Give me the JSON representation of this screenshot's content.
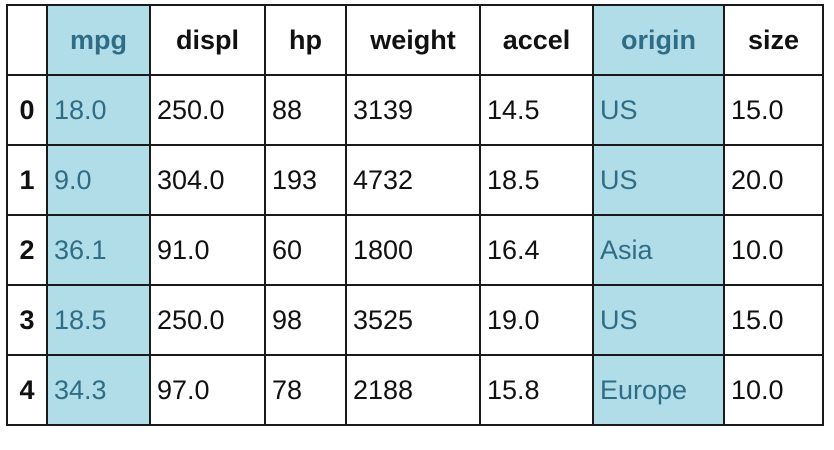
{
  "table": {
    "highlight_color": "#b1dde9",
    "highlight_text_color": "#2f6d86",
    "highlighted_columns": [
      "mpg",
      "origin"
    ],
    "columns": [
      "",
      "mpg",
      "displ",
      "hp",
      "weight",
      "accel",
      "origin",
      "size"
    ],
    "rows": [
      [
        "0",
        "18.0",
        "250.0",
        "88",
        "3139",
        "14.5",
        "US",
        "15.0"
      ],
      [
        "1",
        "9.0",
        "304.0",
        "193",
        "4732",
        "18.5",
        "US",
        "20.0"
      ],
      [
        "2",
        "36.1",
        "91.0",
        "60",
        "1800",
        "16.4",
        "Asia",
        "10.0"
      ],
      [
        "3",
        "18.5",
        "250.0",
        "98",
        "3525",
        "19.0",
        "US",
        "15.0"
      ],
      [
        "4",
        "34.3",
        "97.0",
        "78",
        "2188",
        "15.8",
        "Europe",
        "10.0"
      ]
    ]
  }
}
